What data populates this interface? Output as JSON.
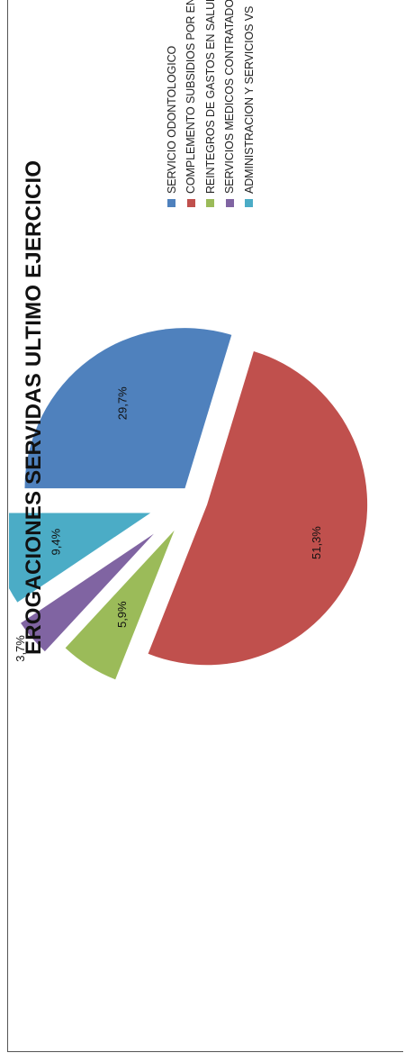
{
  "chart_data": {
    "type": "pie",
    "title": "EROGACIONES SERVIDAS ULTIMO EJERCICIO",
    "categories": [
      "SERVICIO ODONTOLOGICO",
      "COMPLEMENTO SUBSIDIOS POR ENF",
      "REINTEGROS DE GASTOS EN SALUD",
      "SERVICIOS MEDICOS CONTRATADOS",
      "ADMINISTRACION Y SERVICIOS VS"
    ],
    "values": [
      29.7,
      51.3,
      5.9,
      3.7,
      9.4
    ],
    "labels": [
      "29,7%",
      "51,3%",
      "5,9%",
      "3,7%",
      "9,4%"
    ],
    "colors": [
      "#4f81bd",
      "#c0504d",
      "#9bbb59",
      "#8064a2",
      "#4bacc6"
    ],
    "exploded": true,
    "legend_position": "right"
  }
}
